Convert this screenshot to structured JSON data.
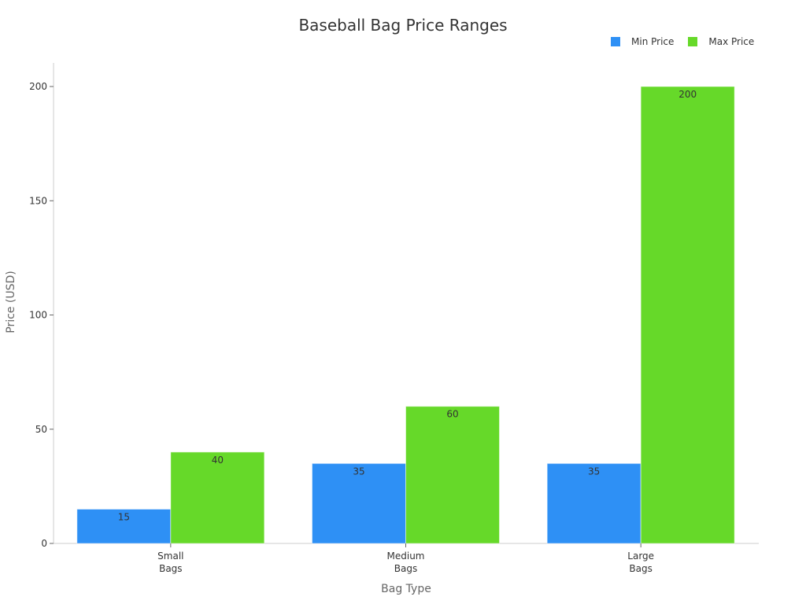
{
  "chart_data": {
    "type": "bar",
    "title": "Baseball Bag Price Ranges",
    "xlabel": "Bag Type",
    "ylabel": "Price (USD)",
    "categories": [
      "Small Bags",
      "Medium Bags",
      "Large Bags"
    ],
    "category_lines": [
      [
        "Small",
        "Bags"
      ],
      [
        "Medium",
        "Bags"
      ],
      [
        "Large",
        "Bags"
      ]
    ],
    "series": [
      {
        "name": "Min Price",
        "color": "#2e90f5",
        "values": [
          15,
          35,
          35
        ]
      },
      {
        "name": "Max Price",
        "color": "#66d929",
        "values": [
          40,
          60,
          200
        ]
      }
    ],
    "ylim": [
      0,
      210
    ],
    "yticks": [
      0,
      50,
      100,
      150,
      200
    ],
    "grid": false,
    "legend_position": "top-right",
    "data_labels": true
  },
  "title": "Baseball Bag Price Ranges",
  "legend": {
    "items": [
      {
        "label": "Min Price",
        "color": "#2e90f5"
      },
      {
        "label": "Max Price",
        "color": "#66d929"
      }
    ]
  },
  "axes": {
    "xlabel": "Bag Type",
    "ylabel": "Price (USD)"
  }
}
